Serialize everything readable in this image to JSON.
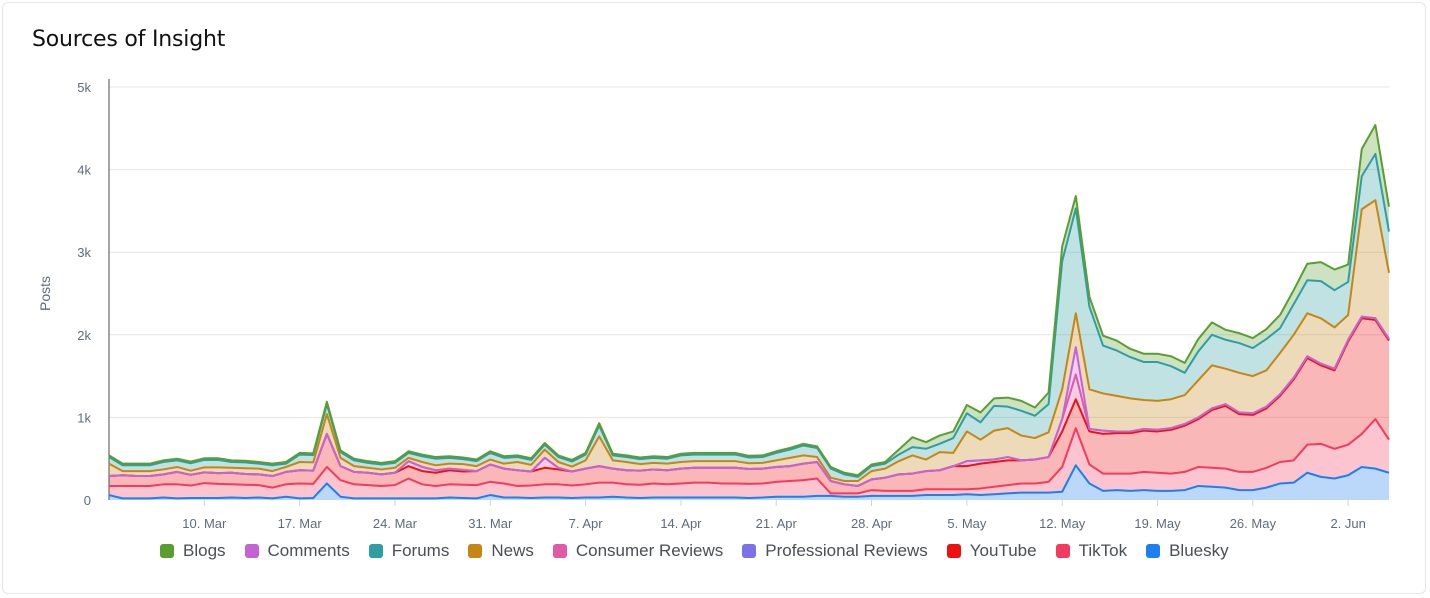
{
  "title": "Sources of Insight",
  "chart_data": {
    "type": "area",
    "stacked": true,
    "title": "Sources of Insight",
    "ylabel": "Posts",
    "xlabel": "",
    "ylim": [
      0,
      5000
    ],
    "y_ticks": [
      "0",
      "1k",
      "2k",
      "3k",
      "4k",
      "5k"
    ],
    "x_tick_labels": [
      "10. Mar",
      "17. Mar",
      "24. Mar",
      "31. Mar",
      "7. Apr",
      "14. Apr",
      "21. Apr",
      "28. Apr",
      "5. May",
      "12. May",
      "19. May",
      "26. May",
      "2. Jun"
    ],
    "x_tick_indices": [
      7,
      14,
      21,
      28,
      35,
      42,
      49,
      56,
      63,
      70,
      77,
      84,
      91
    ],
    "grid": true,
    "legend_position": "bottom",
    "x_start": "3. Mar",
    "x_end": "4. Jun",
    "totals_by_series": {
      "Bluesky": [
        60,
        20,
        20,
        20,
        30,
        20,
        25,
        25,
        25,
        30,
        25,
        30,
        20,
        40,
        20,
        25,
        200,
        40,
        20,
        20,
        20,
        20,
        20,
        20,
        20,
        30,
        25,
        20,
        60,
        30,
        30,
        25,
        30,
        30,
        25,
        30,
        30,
        40,
        30,
        25,
        30,
        30,
        30,
        30,
        30,
        30,
        30,
        25,
        30,
        40,
        40,
        40,
        50,
        50,
        40,
        40,
        50,
        50,
        50,
        50,
        60,
        60,
        60,
        70,
        60,
        70,
        80,
        90,
        90,
        90,
        100,
        420,
        200,
        110,
        120,
        110,
        120,
        110,
        110,
        120,
        170,
        160,
        150,
        120,
        120,
        150,
        200,
        210,
        330,
        280,
        260,
        300,
        400,
        380,
        330
      ],
      "TikTok": [
        110,
        150,
        150,
        150,
        160,
        170,
        150,
        180,
        170,
        160,
        160,
        150,
        130,
        150,
        180,
        170,
        200,
        200,
        170,
        160,
        150,
        160,
        240,
        170,
        150,
        160,
        160,
        160,
        160,
        170,
        140,
        150,
        160,
        160,
        150,
        160,
        180,
        170,
        160,
        160,
        170,
        160,
        170,
        180,
        180,
        170,
        170,
        170,
        170,
        180,
        190,
        200,
        210,
        30,
        40,
        40,
        70,
        60,
        60,
        60,
        70,
        70,
        70,
        60,
        80,
        90,
        100,
        110,
        110,
        130,
        300,
        450,
        230,
        210,
        200,
        210,
        220,
        220,
        210,
        220,
        230,
        230,
        230,
        220,
        220,
        240,
        260,
        270,
        340,
        400,
        360,
        370,
        400,
        600,
        400
      ],
      "YouTube": [
        120,
        130,
        120,
        120,
        120,
        150,
        130,
        130,
        130,
        140,
        130,
        130,
        140,
        150,
        160,
        160,
        400,
        170,
        150,
        150,
        140,
        150,
        150,
        160,
        160,
        170,
        160,
        170,
        210,
        180,
        190,
        170,
        200,
        180,
        170,
        190,
        200,
        170,
        170,
        170,
        170,
        170,
        180,
        180,
        180,
        190,
        190,
        180,
        180,
        180,
        180,
        200,
        200,
        150,
        110,
        90,
        130,
        160,
        200,
        210,
        220,
        230,
        280,
        280,
        300,
        300,
        300,
        280,
        290,
        300,
        430,
        350,
        400,
        480,
        490,
        490,
        500,
        500,
        530,
        560,
        580,
        700,
        760,
        700,
        690,
        720,
        800,
        980,
        1050,
        950,
        950,
        1250,
        1400,
        1200,
        1200
      ],
      "Consumer Reviews": [
        0,
        0,
        0,
        0,
        0,
        0,
        0,
        0,
        0,
        0,
        0,
        0,
        0,
        0,
        0,
        0,
        0,
        0,
        0,
        0,
        0,
        0,
        60,
        50,
        30,
        20,
        20,
        0,
        0,
        0,
        0,
        0,
        120,
        20,
        0,
        0,
        0,
        0,
        0,
        0,
        0,
        0,
        0,
        0,
        0,
        0,
        0,
        0,
        0,
        0,
        0,
        0,
        0,
        0,
        0,
        0,
        0,
        0,
        0,
        0,
        0,
        0,
        0,
        60,
        40,
        30,
        40,
        0,
        0,
        0,
        150,
        300,
        30,
        40,
        20,
        20,
        20,
        20,
        20,
        20,
        20,
        20,
        20,
        20,
        20,
        20,
        20,
        20,
        20,
        20,
        20,
        20,
        20,
        20,
        20
      ],
      "Professional Reviews": [
        0,
        0,
        0,
        0,
        0,
        0,
        0,
        0,
        0,
        0,
        0,
        0,
        0,
        0,
        0,
        0,
        0,
        0,
        0,
        0,
        0,
        0,
        0,
        0,
        0,
        0,
        0,
        0,
        0,
        0,
        0,
        0,
        0,
        0,
        0,
        0,
        0,
        0,
        0,
        0,
        0,
        0,
        0,
        0,
        0,
        0,
        0,
        0,
        0,
        0,
        0,
        0,
        0,
        0,
        0,
        0,
        0,
        0,
        0,
        0,
        0,
        0,
        0,
        0,
        0,
        0,
        0,
        0,
        0,
        0,
        0,
        0,
        0,
        0,
        0,
        0,
        0,
        0,
        0,
        0,
        0,
        0,
        0,
        0,
        0,
        0,
        0,
        0,
        0,
        0,
        0,
        0,
        0,
        0,
        0
      ],
      "Comments": [
        0,
        0,
        0,
        0,
        0,
        0,
        0,
        0,
        0,
        0,
        0,
        0,
        0,
        0,
        0,
        0,
        0,
        0,
        0,
        0,
        0,
        0,
        0,
        0,
        0,
        0,
        0,
        0,
        0,
        0,
        0,
        0,
        0,
        0,
        0,
        0,
        0,
        0,
        0,
        0,
        0,
        0,
        0,
        0,
        0,
        0,
        0,
        0,
        0,
        0,
        0,
        0,
        0,
        0,
        0,
        0,
        0,
        0,
        0,
        0,
        0,
        0,
        0,
        0,
        0,
        0,
        0,
        0,
        0,
        0,
        0,
        330,
        0,
        0,
        0,
        0,
        0,
        0,
        0,
        0,
        0,
        0,
        0,
        0,
        0,
        0,
        0,
        0,
        0,
        0,
        0,
        0,
        0,
        0,
        0
      ],
      "News": [
        150,
        50,
        60,
        60,
        60,
        60,
        50,
        60,
        70,
        60,
        70,
        70,
        60,
        60,
        100,
        100,
        240,
        100,
        70,
        60,
        60,
        60,
        40,
        60,
        60,
        60,
        70,
        60,
        60,
        60,
        100,
        80,
        100,
        70,
        60,
        100,
        360,
        100,
        100,
        80,
        80,
        80,
        80,
        80,
        80,
        80,
        80,
        70,
        70,
        80,
        100,
        100,
        60,
        40,
        40,
        60,
        100,
        110,
        160,
        220,
        140,
        220,
        160,
        360,
        250,
        350,
        350,
        300,
        260,
        300,
        360,
        410,
        480,
        450,
        430,
        400,
        350,
        350,
        350,
        350,
        450,
        520,
        430,
        480,
        450,
        440,
        500,
        520,
        520,
        550,
        500,
        300,
        1300,
        1430,
        800
      ],
      "Forums": [
        80,
        70,
        70,
        70,
        90,
        80,
        90,
        90,
        90,
        70,
        70,
        60,
        70,
        40,
        90,
        90,
        120,
        70,
        70,
        60,
        60,
        60,
        60,
        70,
        80,
        70,
        60,
        60,
        80,
        70,
        60,
        60,
        60,
        60,
        60,
        70,
        130,
        60,
        60,
        60,
        60,
        60,
        80,
        80,
        80,
        80,
        80,
        70,
        70,
        90,
        100,
        120,
        110,
        110,
        80,
        50,
        60,
        60,
        80,
        100,
        130,
        100,
        180,
        220,
        210,
        300,
        260,
        300,
        270,
        340,
        1550,
        1270,
        1000,
        580,
        550,
        500,
        460,
        470,
        400,
        270,
        350,
        370,
        350,
        360,
        340,
        380,
        300,
        370,
        400,
        450,
        450,
        400,
        400,
        560,
        500
      ],
      "Blogs": [
        20,
        20,
        20,
        20,
        20,
        20,
        20,
        20,
        20,
        20,
        20,
        20,
        20,
        20,
        20,
        20,
        30,
        20,
        20,
        20,
        20,
        20,
        20,
        20,
        20,
        20,
        20,
        20,
        20,
        20,
        20,
        20,
        20,
        20,
        20,
        20,
        30,
        20,
        20,
        20,
        20,
        20,
        20,
        20,
        20,
        20,
        20,
        20,
        20,
        20,
        20,
        20,
        20,
        20,
        20,
        20,
        20,
        20,
        60,
        120,
        80,
        100,
        80,
        100,
        120,
        90,
        110,
        120,
        100,
        140,
        180,
        150,
        120,
        120,
        120,
        100,
        100,
        100,
        120,
        120,
        150,
        150,
        120,
        120,
        120,
        120,
        160,
        170,
        200,
        230,
        250,
        210,
        330,
        350,
        300
      ]
    },
    "series": [
      {
        "name": "Blogs",
        "color": "#5a9e2f",
        "legend_color": "#5a9e2f"
      },
      {
        "name": "Comments",
        "color": "#c563d4",
        "legend_color": "#c563d4"
      },
      {
        "name": "Forums",
        "color": "#2f9ea3",
        "legend_color": "#2f9ea3"
      },
      {
        "name": "News",
        "color": "#c58613",
        "legend_color": "#c58613"
      },
      {
        "name": "Consumer Reviews",
        "color": "#e05aa8",
        "legend_color": "#e05aa8"
      },
      {
        "name": "Professional Reviews",
        "color": "#7b72e9",
        "legend_color": "#7b72e9"
      },
      {
        "name": "YouTube",
        "color": "#ee1111",
        "legend_color": "#ee1111"
      },
      {
        "name": "TikTok",
        "color": "#f43b5e",
        "legend_color": "#f43b5e"
      },
      {
        "name": "Bluesky",
        "color": "#1e7ff0",
        "legend_color": "#1e7ff0"
      }
    ],
    "stack_order_bottom_to_top": [
      "Bluesky",
      "TikTok",
      "YouTube",
      "Consumer Reviews",
      "Professional Reviews",
      "Comments",
      "News",
      "Forums",
      "Blogs"
    ]
  }
}
